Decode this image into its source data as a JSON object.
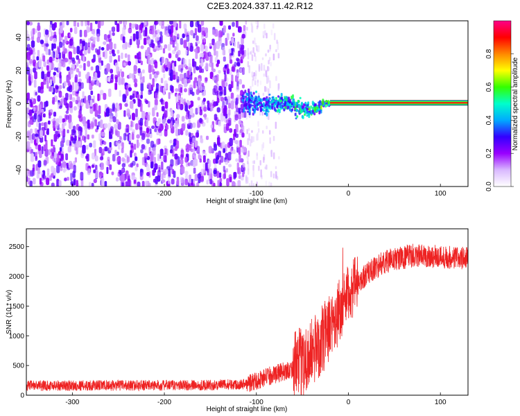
{
  "title": "C2E3.2024.337.11.42.R12",
  "chart_data": [
    {
      "type": "heatmap",
      "xlabel": "Height of straight line (km)",
      "ylabel": "Frequency (Hz)",
      "xlim": [
        -350,
        130
      ],
      "ylim": [
        -50,
        50
      ],
      "xticks": [
        -300,
        -200,
        -100,
        0,
        100
      ],
      "yticks": [
        -40,
        -20,
        0,
        20,
        40
      ],
      "colorbar": {
        "label": "Normalized spectral amplitude",
        "ticks": [
          "0.0",
          "0.2",
          "0.4",
          "0.6",
          "0.8"
        ],
        "tick_values": [
          0.0,
          0.2,
          0.4,
          0.6,
          0.8
        ],
        "range": [
          0,
          1
        ],
        "colors": [
          "#ffffff",
          "#d9b8ff",
          "#9900ff",
          "#3300ff",
          "#00aaff",
          "#00ffcc",
          "#33ff00",
          "#ffff00",
          "#ff8800",
          "#ff0000",
          "#ff0088"
        ]
      },
      "regions": [
        {
          "name": "noise",
          "x_range": [
            -350,
            -112
          ],
          "amplitude": 0.12
        },
        {
          "name": "fading-noise",
          "x_range": [
            -112,
            -75
          ],
          "amplitude": 0.05
        },
        {
          "name": "carrier-onset",
          "x_range": [
            -115,
            -20
          ],
          "frequency": 0,
          "amplitude": 0.35
        },
        {
          "name": "carrier",
          "x_range": [
            -20,
            130
          ],
          "frequency": 0.5,
          "amplitude": 1.0
        }
      ]
    },
    {
      "type": "line",
      "xlabel": "Height of straight line (km)",
      "ylabel": "SNR (10 * v/v)",
      "xlim": [
        -350,
        130
      ],
      "ylim": [
        0,
        2800
      ],
      "xticks": [
        -300,
        -200,
        -100,
        0,
        100
      ],
      "yticks": [
        0,
        500,
        1000,
        1500,
        2000,
        2500
      ],
      "color": "#ee2222",
      "profile": [
        {
          "x": -350,
          "y": 160
        },
        {
          "x": -150,
          "y": 170
        },
        {
          "x": -110,
          "y": 190
        },
        {
          "x": -90,
          "y": 300
        },
        {
          "x": -60,
          "y": 450
        },
        {
          "x": -40,
          "y": 700
        },
        {
          "x": -25,
          "y": 1000
        },
        {
          "x": -10,
          "y": 1400
        },
        {
          "x": 0,
          "y": 1700
        },
        {
          "x": 20,
          "y": 2050
        },
        {
          "x": 40,
          "y": 2250
        },
        {
          "x": 70,
          "y": 2350
        },
        {
          "x": 100,
          "y": 2330
        },
        {
          "x": 130,
          "y": 2300
        }
      ]
    }
  ]
}
